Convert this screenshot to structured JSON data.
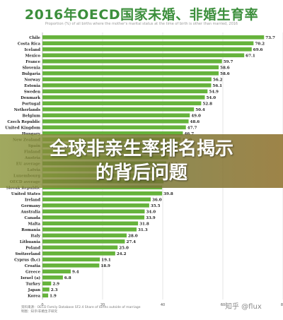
{
  "chart_data": {
    "type": "bar",
    "orientation": "horizontal",
    "title": "2016年OECD国家未婚、非婚生育率",
    "subtitle": "Proportion (%) of all births where the mother's marital status at the time of birth is other than married, 2016",
    "categories": [
      "Chile",
      "Costa Rica",
      "Iceland",
      "Mexico",
      "France",
      "Slovenia",
      "Bulgaria",
      "Norway",
      "Estonia",
      "Sweden",
      "Denmark",
      "Portugal",
      "Netherlands",
      "Belgium",
      "Czech Republic",
      "United Kingdom",
      "Hungary",
      "New Zealand",
      "Spain",
      "Finland",
      "Austria",
      "EU average",
      "Latvia",
      "Luxembourg",
      "OECD average",
      "Slovak Republic",
      "United States",
      "Ireland",
      "Germany",
      "Australia",
      "Canada",
      "Malta",
      "Romania",
      "Italy",
      "Lithuania",
      "Poland",
      "Switzerland",
      "Cyprus (b,c)",
      "Croatia",
      "Greece",
      "Israel (a)",
      "Turkey",
      "Japan",
      "Korea"
    ],
    "values": [
      73.7,
      70.2,
      69.6,
      67.1,
      59.7,
      58.6,
      58.6,
      56.2,
      56.1,
      54.9,
      54.0,
      52.8,
      50.4,
      49.0,
      48.6,
      47.7,
      46.7,
      46.0,
      45.9,
      44.9,
      41.9,
      41.2,
      40.1,
      40.0,
      40.3,
      39.8,
      39.8,
      36.0,
      35.5,
      34.0,
      33.9,
      31.8,
      31.3,
      28.0,
      27.4,
      25.0,
      24.2,
      19.1,
      18.9,
      9.4,
      6.8,
      2.9,
      2.3,
      1.9
    ],
    "value_labels": [
      "73.7",
      "70.2",
      "69.6",
      "67.1",
      "59.7",
      "58.6",
      "58.6",
      "56.2",
      "56.1",
      "54.9",
      "54.0",
      "52.8",
      "50.4",
      "49.0",
      "48.6",
      "47.7",
      "46.7",
      "46.0",
      "",
      "",
      "",
      "41.2",
      "",
      "",
      "",
      "",
      "39.8",
      "36.0",
      "35.5",
      "34.0",
      "33.9",
      "31.8",
      "31.3",
      "28.0",
      "27.4",
      "25.0",
      "24.2",
      "19.1",
      "18.9",
      "9.4",
      "6.8",
      "2.9",
      "2.3",
      "1.9"
    ],
    "highlight": [
      "EU average",
      "OECD average"
    ],
    "xlim": [
      0,
      80
    ],
    "xticks": [
      "0",
      "20",
      "40",
      "60",
      "80"
    ],
    "grid": true,
    "bar_color": "#66b33c",
    "highlight_color": "#3f8a2a"
  },
  "overlay": {
    "line1": "全球非亲生率排名揭示",
    "line2": "的背后问题"
  },
  "source": {
    "line1": "资料来源：OECD Family Database SF2.4 Share of births outside of marriage",
    "line2": "制图：知乎/非婚生子研究"
  },
  "watermark": "知乎 @flux"
}
